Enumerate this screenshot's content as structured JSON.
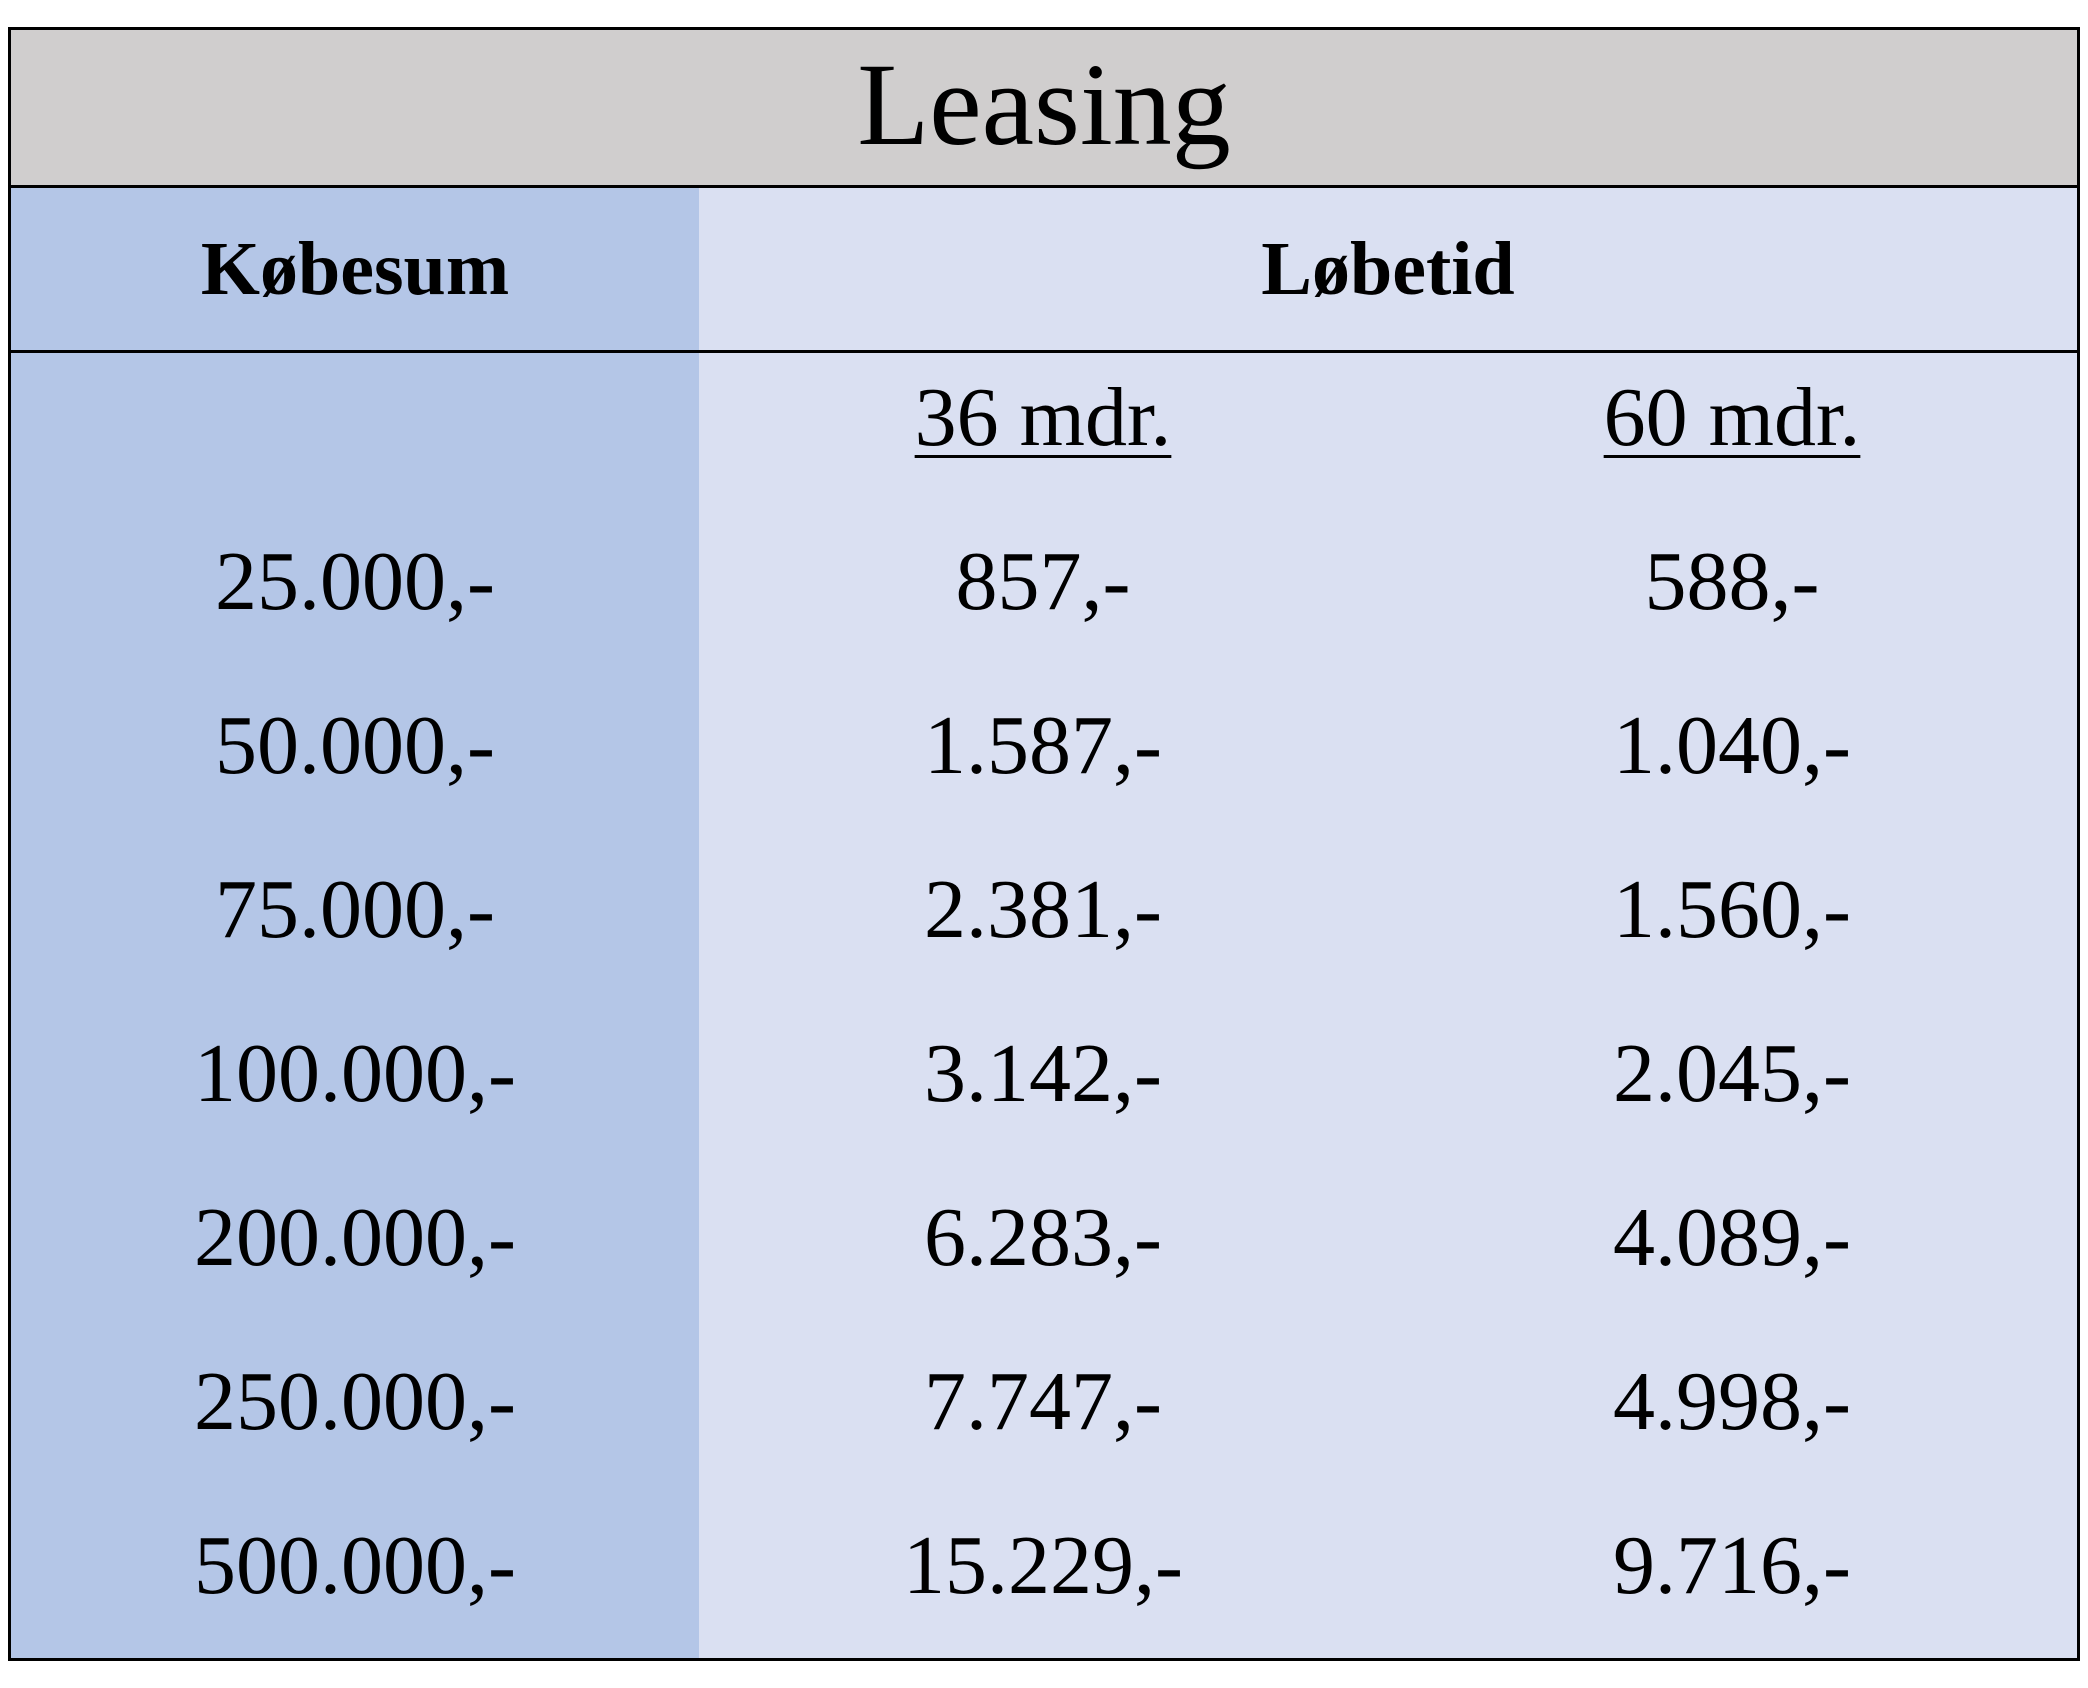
{
  "title": "Leasing",
  "headers": {
    "purchase_amount": "Købesum",
    "term": "Løbetid"
  },
  "terms": [
    "36 mdr.",
    "60 mdr."
  ],
  "rows": [
    {
      "amount": "25.000,-",
      "m36": "857,-",
      "m60": "588,-"
    },
    {
      "amount": "50.000,-",
      "m36": "1.587,-",
      "m60": "1.040,-"
    },
    {
      "amount": "75.000,-",
      "m36": "2.381,-",
      "m60": "1.560,-"
    },
    {
      "amount": "100.000,-",
      "m36": "3.142,-",
      "m60": "2.045,-"
    },
    {
      "amount": "200.000,-",
      "m36": "6.283,-",
      "m60": "4.089,-"
    },
    {
      "amount": "250.000,-",
      "m36": "7.747,-",
      "m60": "4.998,-"
    },
    {
      "amount": "500.000,-",
      "m36": "15.229,-",
      "m60": "9.716,-"
    }
  ],
  "colors": {
    "title_band": "#d0cece",
    "left_column": "#b4c6e7",
    "body": "#dae0f2"
  }
}
